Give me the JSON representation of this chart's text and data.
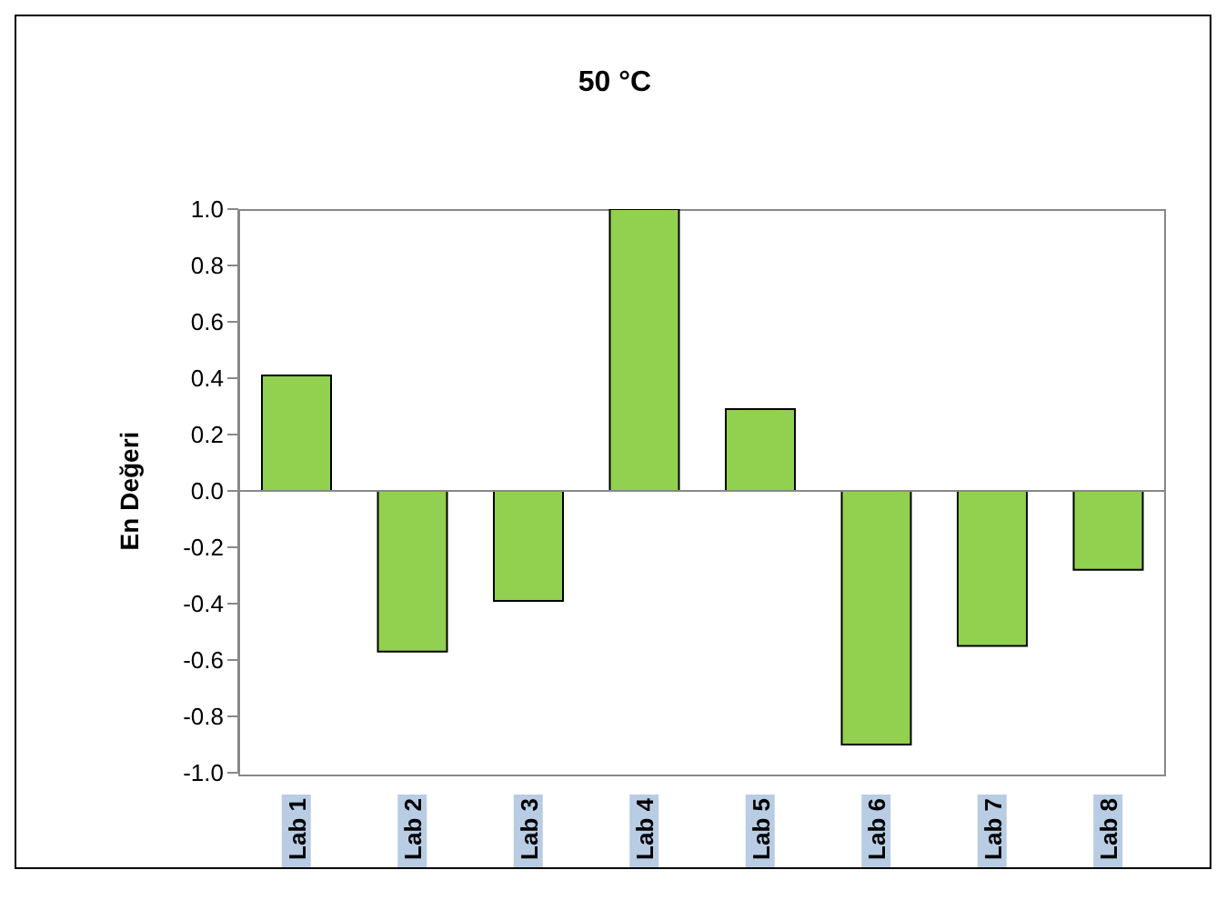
{
  "chart_data": {
    "type": "bar",
    "title": "50 °C",
    "ylabel": "En Değeri",
    "categories": [
      "Lab 1",
      "Lab 2",
      "Lab 3",
      "Lab 4",
      "Lab 5",
      "Lab 6",
      "Lab 7",
      "Lab 8"
    ],
    "values": [
      0.41,
      -0.57,
      -0.39,
      1.0,
      0.29,
      -0.9,
      -0.55,
      -0.28
    ],
    "color": "#92d050",
    "ylim": [
      -1.0,
      1.0
    ],
    "yticks": [
      {
        "value": -1,
        "label": "-1.0"
      },
      {
        "value": -0.8,
        "label": "-0.8"
      },
      {
        "value": -0.6,
        "label": "-0.6"
      },
      {
        "value": -0.4,
        "label": "-0.4"
      },
      {
        "value": -0.2,
        "label": "-0.2"
      },
      {
        "value": 0,
        "label": "0.0"
      },
      {
        "value": 0.2,
        "label": "0.2"
      },
      {
        "value": 0.4,
        "label": "0.4"
      },
      {
        "value": 0.6,
        "label": "0.6"
      },
      {
        "value": 0.8,
        "label": "0.8"
      },
      {
        "value": 1,
        "label": "1.0"
      }
    ],
    "ref_lines": [
      {
        "axis": "y",
        "value": 0
      }
    ],
    "grid": false,
    "legend": false
  }
}
